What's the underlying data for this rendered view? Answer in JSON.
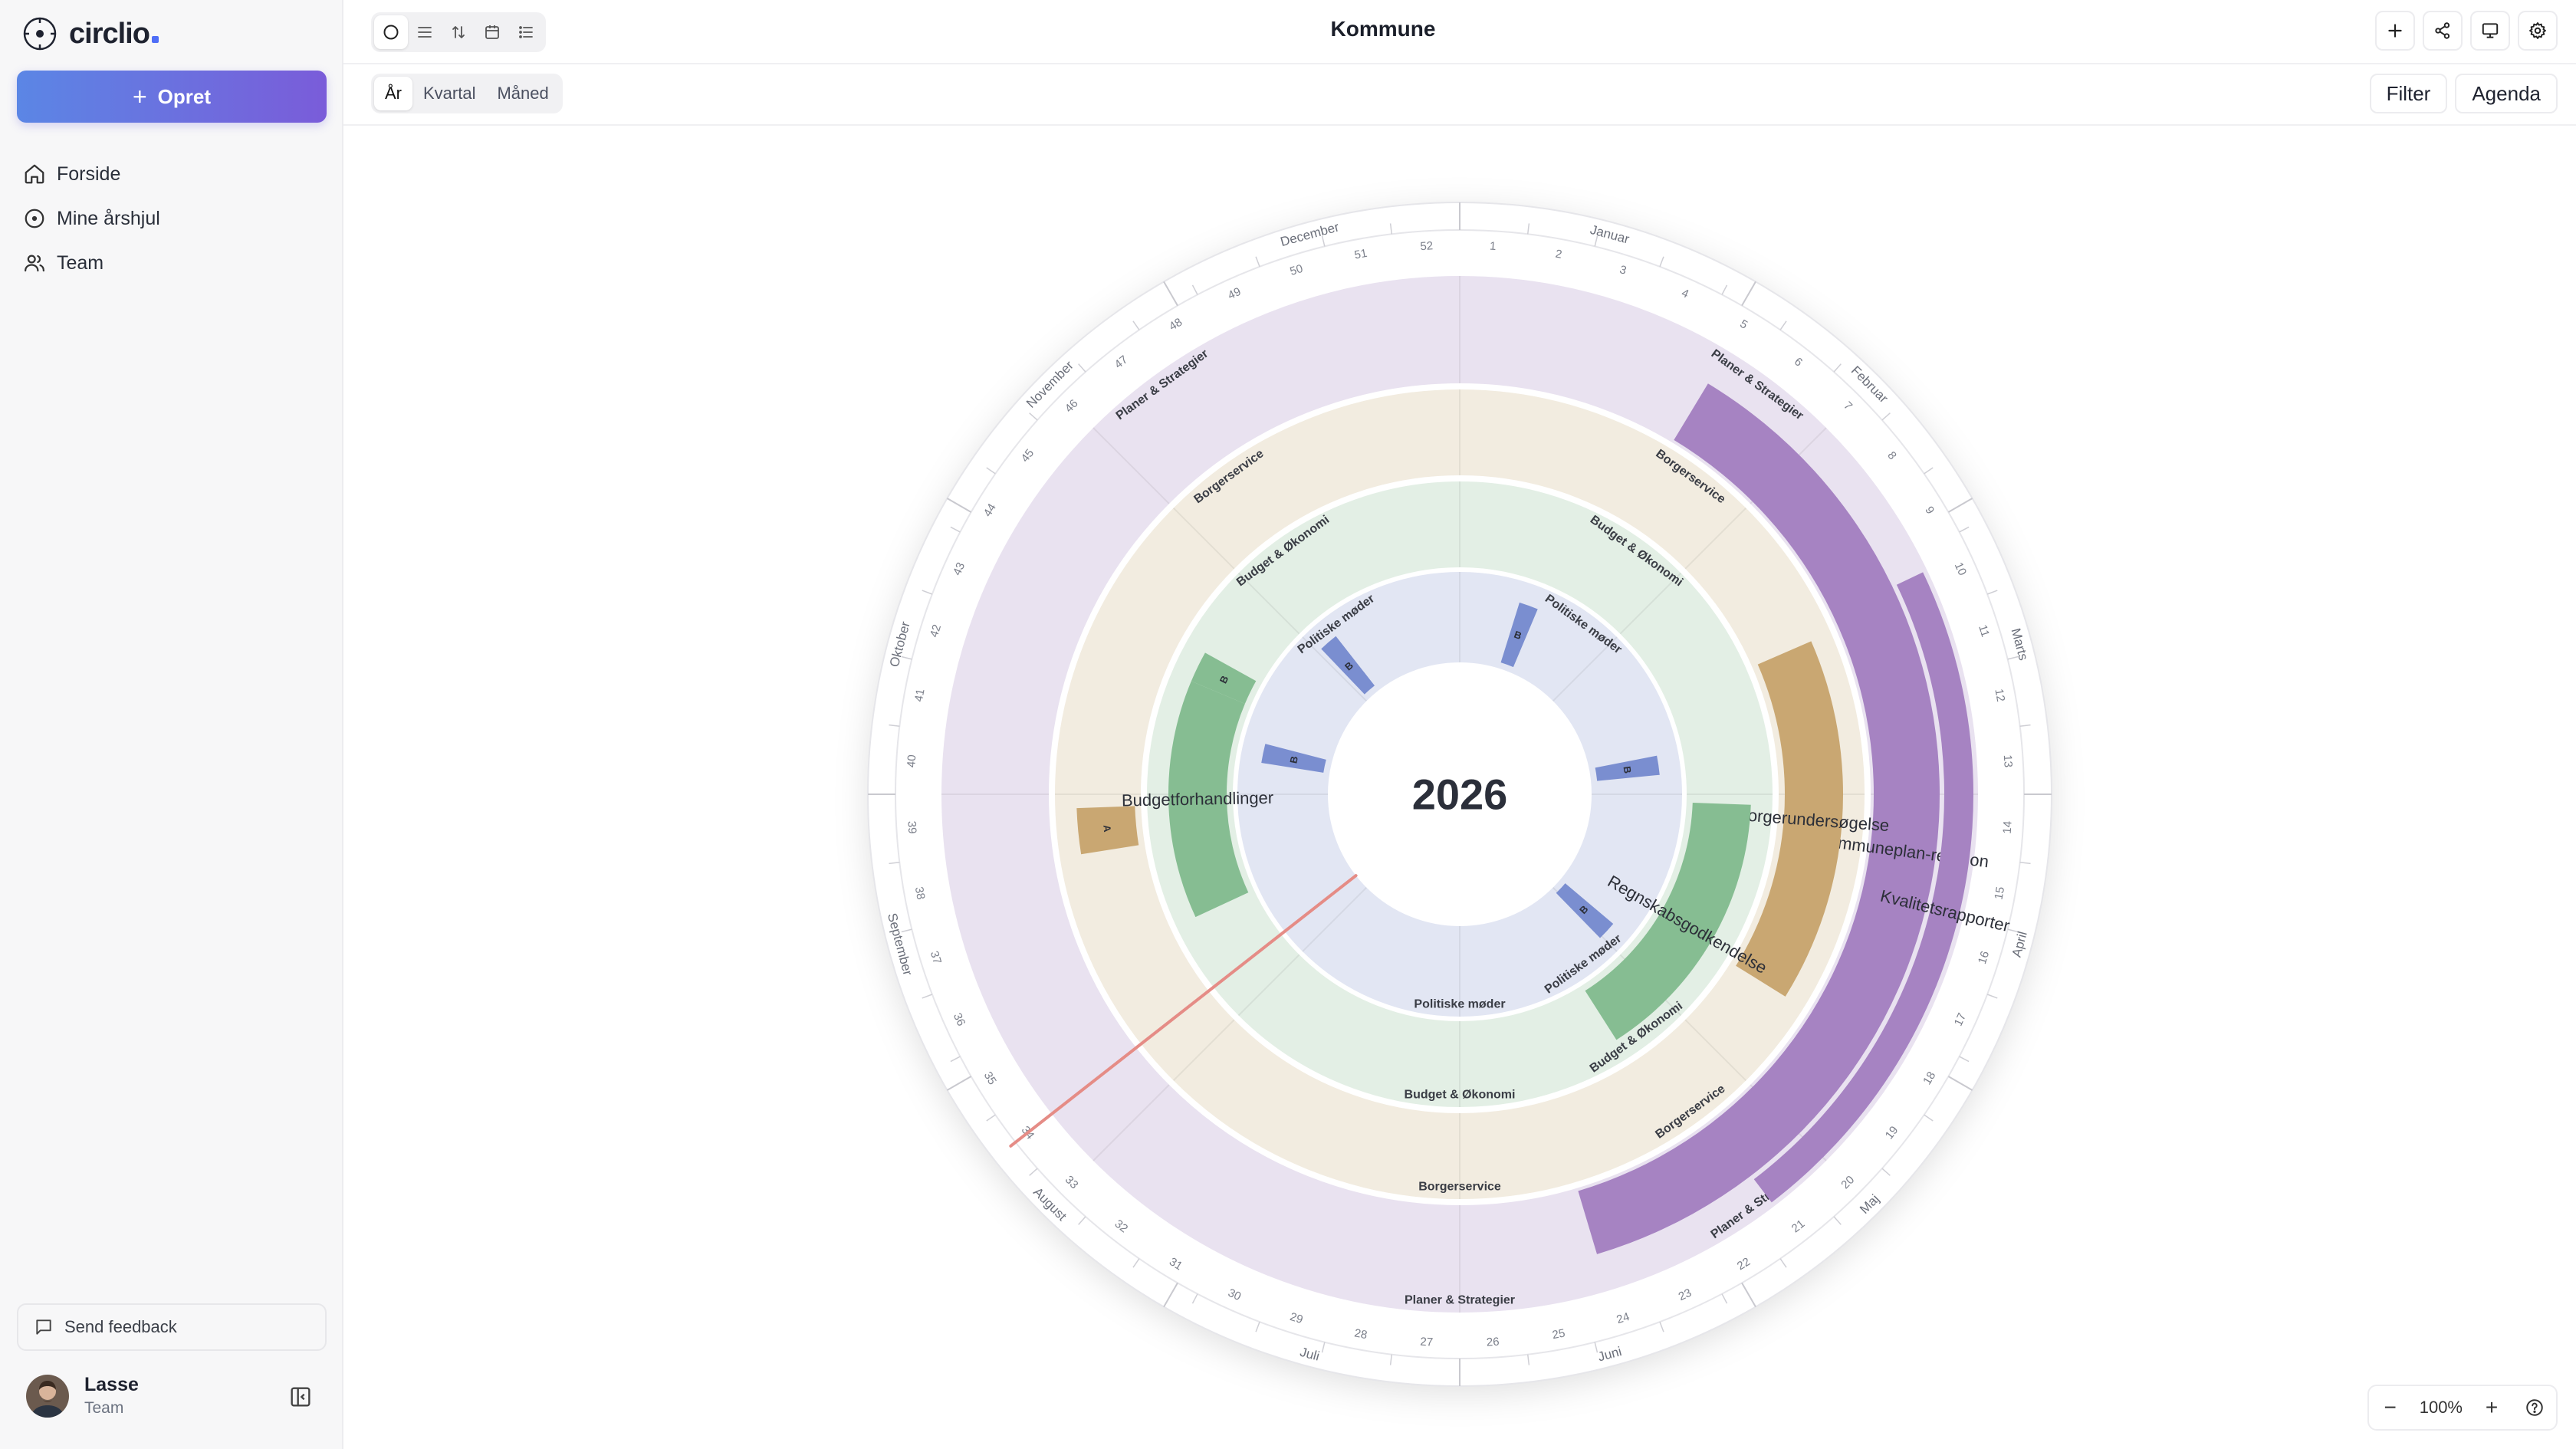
{
  "app": {
    "name": "circlio"
  },
  "sidebar": {
    "create_label": "Opret",
    "nav": [
      {
        "label": "Forside",
        "icon": "home-icon"
      },
      {
        "label": "Mine årshjul",
        "icon": "circle-dot-icon"
      },
      {
        "label": "Team",
        "icon": "users-icon"
      }
    ],
    "feedback_label": "Send feedback",
    "user": {
      "name": "Lasse",
      "role": "Team"
    }
  },
  "header": {
    "title": "Kommune",
    "view_modes": [
      "circle-view-icon",
      "list-view-icon",
      "sort-icon",
      "calendar-icon",
      "agenda-list-icon"
    ],
    "actions": [
      "add-icon",
      "share-icon",
      "present-icon",
      "settings-icon"
    ]
  },
  "subbar": {
    "periods": [
      "År",
      "Kvartal",
      "Måned"
    ],
    "active_period": "År",
    "filter_label": "Filter",
    "agenda_label": "Agenda"
  },
  "wheel": {
    "year": "2026",
    "months": [
      "Januar",
      "Februar",
      "Marts",
      "April",
      "Maj",
      "Juni",
      "Juli",
      "August",
      "September",
      "Oktober",
      "November",
      "December"
    ],
    "weeks": 52,
    "today_marker_week": 34,
    "rings": [
      {
        "name": "Planer & Strategier",
        "color": "#e9e2f0",
        "event_color": "#a683c2"
      },
      {
        "name": "Borgerservice",
        "color": "#f2ece0",
        "event_color": "#c9a772"
      },
      {
        "name": "Budget & Økonomi",
        "color": "#e3efe5",
        "event_color": "#86bd92"
      },
      {
        "name": "Politiske møder",
        "color": "#e2e6f3",
        "event_color": "#7a8ed0"
      }
    ],
    "events": [
      {
        "ring": 0,
        "label": "Kommuneplan-revision",
        "start_week": 4.5,
        "end_week": 23.6
      },
      {
        "ring": 0,
        "label": "Kvalitetsrapporter",
        "start_week": 9.3,
        "end_week": 20.6
      },
      {
        "ring": 1,
        "label": "Borgerundersøgelse",
        "start_week": 9.6,
        "end_week": 17.6
      },
      {
        "ring": 1,
        "label": "A",
        "start_week": 37.7,
        "end_week": 38.7
      },
      {
        "ring": 2,
        "label": "Regnskabsgodkendelse",
        "start_week": 13.3,
        "end_week": 21.3
      },
      {
        "ring": 2,
        "label": "Budgetforhandlinger",
        "start_week": 35.4,
        "end_week": 42.3
      },
      {
        "ring": 2,
        "label": "B",
        "start_week": 42.3,
        "end_week": 43.2
      },
      {
        "ring": 3,
        "label": "B",
        "start_week": 2.5,
        "end_week": 3.3
      },
      {
        "ring": 3,
        "label": "B",
        "start_week": 11.4,
        "end_week": 12.2
      },
      {
        "ring": 3,
        "label": "B",
        "start_week": 18.8,
        "end_week": 19.6
      },
      {
        "ring": 3,
        "label": "B",
        "start_week": 40.3,
        "end_week": 41.1
      },
      {
        "ring": 3,
        "label": "B",
        "start_week": 45.7,
        "end_week": 46.5
      }
    ]
  },
  "zoom": {
    "value": "100%"
  }
}
